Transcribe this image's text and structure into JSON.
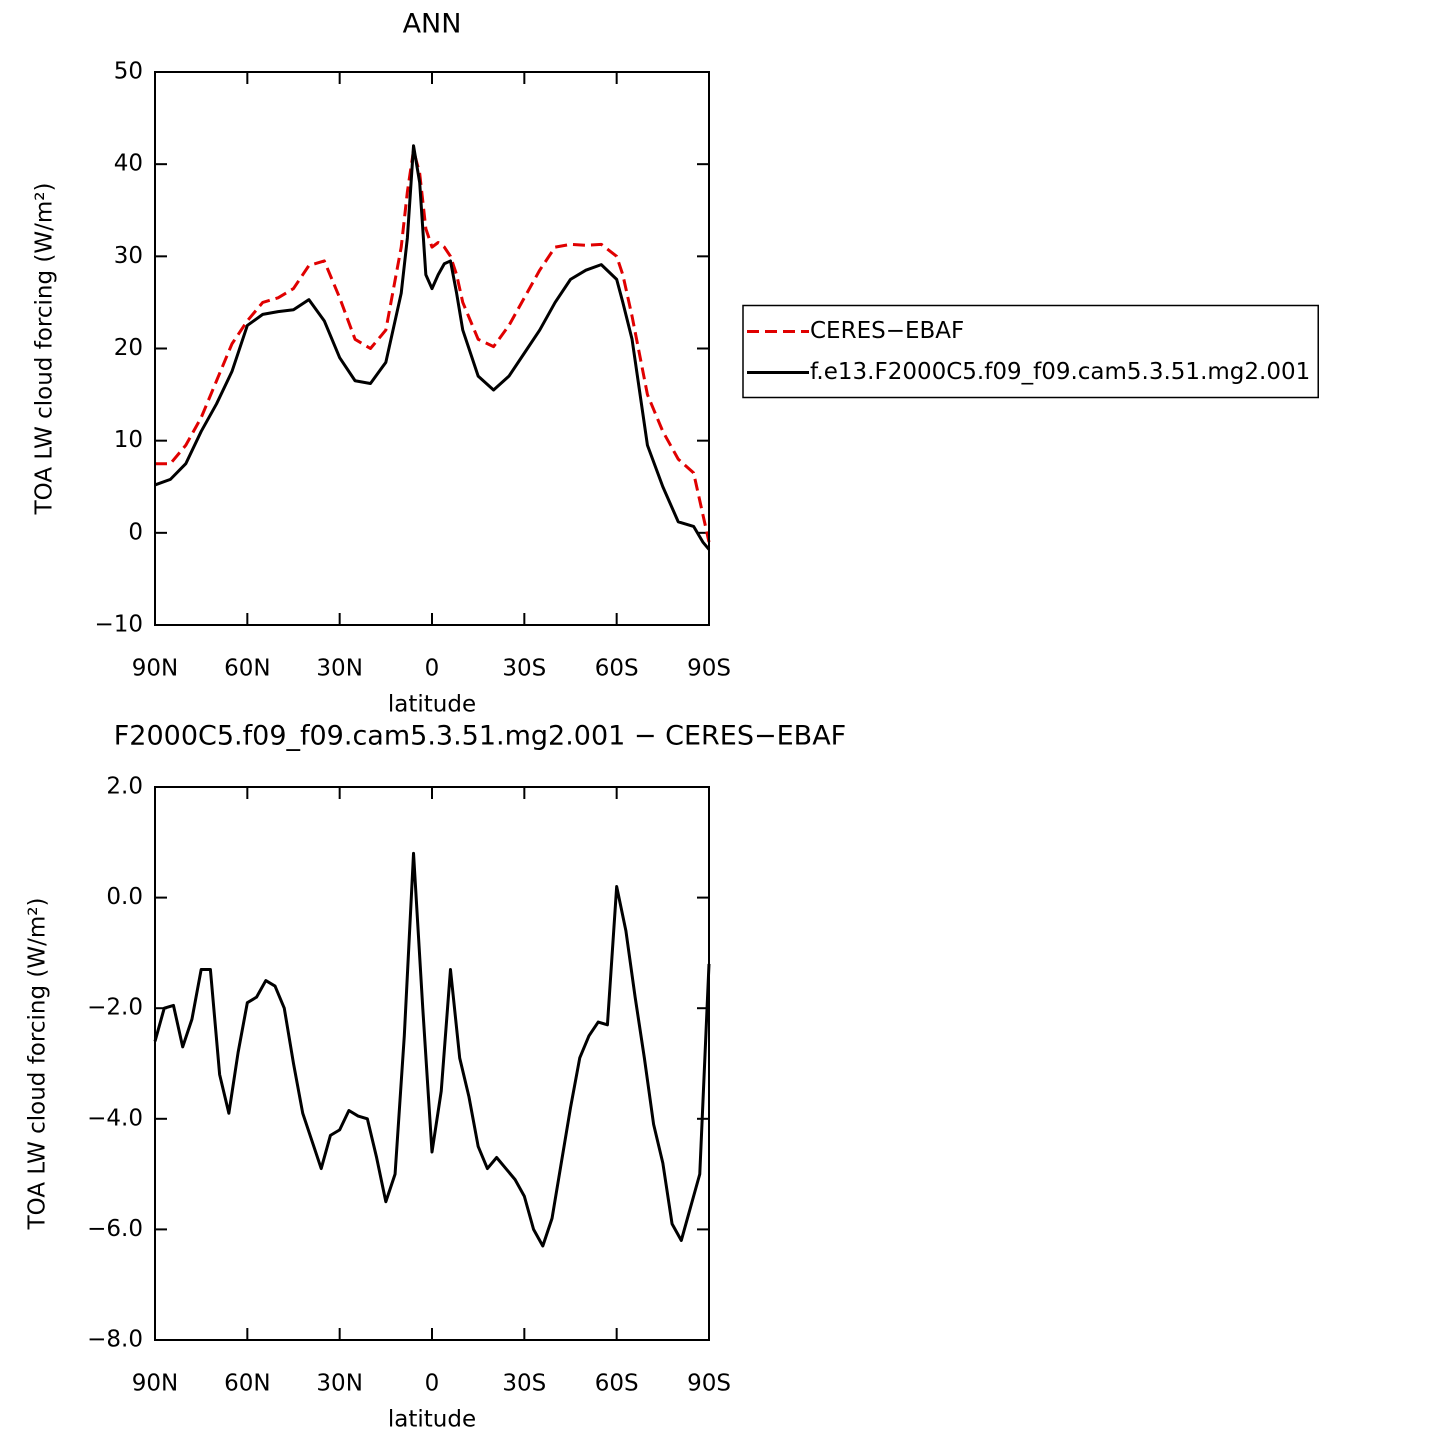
{
  "chart_data": [
    {
      "type": "line",
      "title": "ANN",
      "x_label": "latitude",
      "y_label": "TOA LW cloud forcing (W/m²)",
      "x": [
        90,
        85,
        80,
        75,
        70,
        65,
        60,
        55,
        50,
        45,
        40,
        35,
        30,
        25,
        20,
        15,
        10,
        8,
        6,
        4,
        2,
        0,
        -2,
        -4,
        -6,
        -8,
        -10,
        -15,
        -20,
        -25,
        -30,
        -35,
        -40,
        -45,
        -50,
        -55,
        -60,
        -62,
        -65,
        -70,
        -75,
        -80,
        -85,
        -88,
        -90
      ],
      "series": [
        {
          "name": "CERES−EBAF",
          "color": "#e00000",
          "dashed": true,
          "values": [
            7.5,
            7.5,
            9.5,
            12.5,
            16.5,
            20.5,
            23,
            25,
            25.5,
            26.5,
            29,
            29.5,
            25.5,
            21,
            20,
            22,
            31,
            37,
            41.5,
            39,
            33,
            31,
            31.5,
            31,
            30,
            28,
            25,
            21,
            20.2,
            22.5,
            25.5,
            28.5,
            31,
            31.3,
            31.2,
            31.3,
            30,
            28,
            23.5,
            15,
            11,
            8,
            6.5,
            2,
            -1
          ]
        },
        {
          "name": "f.e13.F2000C5.f09_f09.cam5.3.51.mg2.001",
          "color": "#000000",
          "dashed": false,
          "values": [
            5.2,
            5.8,
            7.5,
            11,
            14,
            17.5,
            22.5,
            23.7,
            24,
            24.2,
            25.3,
            23,
            19,
            16.5,
            16.2,
            18.5,
            26,
            32,
            42,
            38,
            28,
            26.5,
            28,
            29.2,
            29.5,
            26,
            22,
            17,
            15.5,
            17,
            19.5,
            22,
            25,
            27.5,
            28.5,
            29.1,
            27.5,
            25,
            21,
            9.5,
            5,
            1.2,
            0.7,
            -1,
            -1.8
          ]
        }
      ],
      "xlim": [
        90,
        -90
      ],
      "xticks": [
        {
          "value": 90,
          "label": "90N"
        },
        {
          "value": 60,
          "label": "60N"
        },
        {
          "value": 30,
          "label": "30N"
        },
        0,
        {
          "value": -30,
          "label": "30S"
        },
        {
          "value": -60,
          "label": "60S"
        },
        {
          "value": -90,
          "label": "90S"
        }
      ],
      "ylim": [
        -10,
        50
      ],
      "yticks": [
        {
          "value": -10,
          "label": "−10"
        },
        0,
        10,
        20,
        30,
        40,
        50
      ],
      "legend": "right"
    },
    {
      "type": "line",
      "title": "F2000C5.f09_f09.cam5.3.51.mg2.001 − CERES−EBAF",
      "x_label": "latitude",
      "y_label": "TOA LW cloud forcing (W/m²)",
      "x": [
        90,
        87,
        84,
        81,
        78,
        75,
        72,
        69,
        66,
        63,
        60,
        57,
        54,
        51,
        48,
        45,
        42,
        39,
        36,
        33,
        30,
        27,
        24,
        21,
        18,
        15,
        12,
        9,
        6,
        3,
        0,
        -3,
        -6,
        -9,
        -12,
        -15,
        -18,
        -21,
        -24,
        -27,
        -30,
        -33,
        -36,
        -39,
        -42,
        -45,
        -48,
        -51,
        -54,
        -57,
        -60,
        -63,
        -66,
        -69,
        -72,
        -75,
        -78,
        -81,
        -84,
        -87,
        -90
      ],
      "series": [
        {
          "color": "#000000",
          "dashed": false,
          "values": [
            -2.6,
            -2.0,
            -1.95,
            -2.7,
            -2.2,
            -1.3,
            -1.3,
            -3.2,
            -3.9,
            -2.8,
            -1.9,
            -1.8,
            -1.5,
            -1.6,
            -2.0,
            -3.0,
            -3.9,
            -4.4,
            -4.9,
            -4.3,
            -4.2,
            -3.85,
            -3.95,
            -4.0,
            -4.7,
            -5.5,
            -5.0,
            -2.5,
            0.8,
            -2.0,
            -4.6,
            -3.5,
            -1.3,
            -2.9,
            -3.6,
            -4.5,
            -4.9,
            -4.7,
            -4.9,
            -5.1,
            -5.4,
            -6.0,
            -6.3,
            -5.8,
            -4.8,
            -3.8,
            -2.9,
            -2.5,
            -2.25,
            -2.3,
            0.2,
            -0.6,
            -1.8,
            -2.9,
            -4.1,
            -4.8,
            -5.9,
            -6.2,
            -5.6,
            -5.0,
            -1.2
          ]
        }
      ],
      "xlim": [
        90,
        -90
      ],
      "xticks": [
        {
          "value": 90,
          "label": "90N"
        },
        {
          "value": 60,
          "label": "60N"
        },
        {
          "value": 30,
          "label": "30N"
        },
        0,
        {
          "value": -30,
          "label": "30S"
        },
        {
          "value": -60,
          "label": "60S"
        },
        {
          "value": -90,
          "label": "90S"
        }
      ],
      "ylim": [
        -8,
        2
      ],
      "yticks": [
        {
          "value": -8,
          "label": "−8.0"
        },
        {
          "value": -6,
          "label": "−6.0"
        },
        {
          "value": -4,
          "label": "−4.0"
        },
        {
          "value": -2,
          "label": "−2.0"
        },
        {
          "value": 0,
          "label": "0.0"
        },
        {
          "value": 2,
          "label": "2.0"
        }
      ]
    }
  ]
}
